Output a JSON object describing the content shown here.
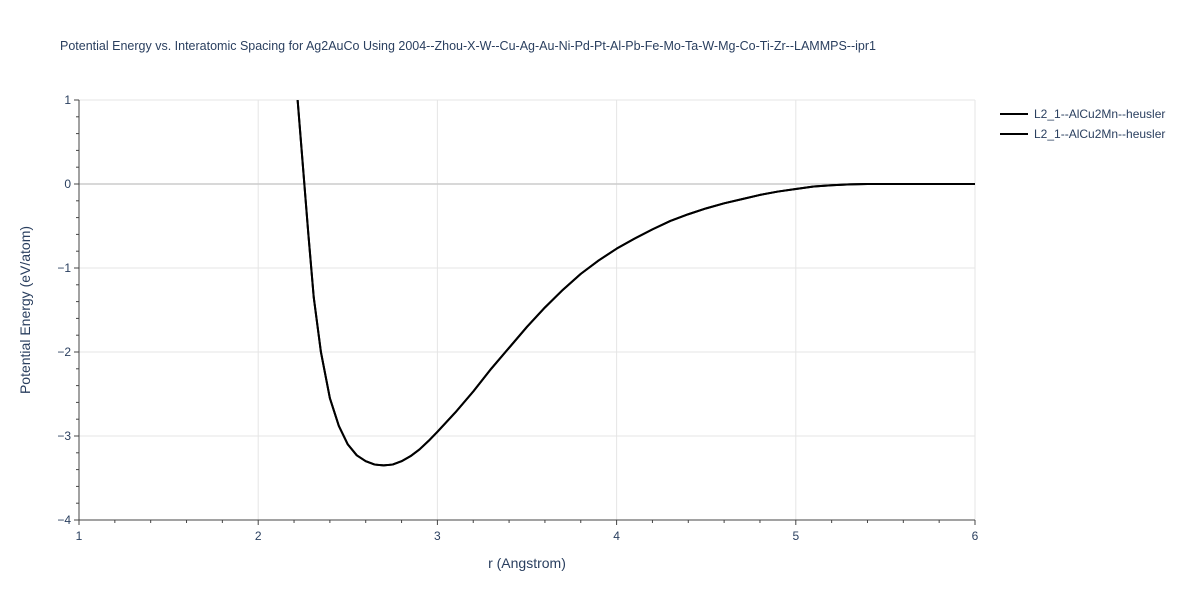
{
  "chart_data": {
    "type": "line",
    "title": "Potential Energy vs. Interatomic Spacing for Ag2AuCo Using 2004--Zhou-X-W--Cu-Ag-Au-Ni-Pd-Pt-Al-Pb-Fe-Mo-Ta-W-Mg-Co-Ti-Zr--LAMMPS--ipr1",
    "xlabel": "r (Angstrom)",
    "ylabel": "Potential Energy (eV/atom)",
    "xlim": [
      1,
      6
    ],
    "ylim": [
      -4,
      1
    ],
    "xticks": [
      1,
      2,
      3,
      4,
      5,
      6
    ],
    "yticks": [
      -4,
      -3,
      -2,
      -1,
      0,
      1
    ],
    "xtick_labels": [
      "1",
      "2",
      "3",
      "4",
      "5",
      "6"
    ],
    "ytick_labels": [
      "−4",
      "−3",
      "−2",
      "−1",
      "0",
      "1"
    ],
    "grid": true,
    "legend_position": "top-right",
    "series": [
      {
        "name": "L2_1--AlCu2Mn--heusler",
        "color": "#000000",
        "x": [
          2.22,
          2.25,
          2.28,
          2.31,
          2.35,
          2.4,
          2.45,
          2.5,
          2.55,
          2.6,
          2.65,
          2.7,
          2.75,
          2.8,
          2.85,
          2.9,
          2.95,
          3.0,
          3.1,
          3.2,
          3.3,
          3.4,
          3.5,
          3.6,
          3.7,
          3.8,
          3.9,
          4.0,
          4.1,
          4.2,
          4.3,
          4.4,
          4.5,
          4.6,
          4.7,
          4.8,
          4.9,
          5.0,
          5.1,
          5.2,
          5.3,
          5.4,
          5.5,
          5.6,
          5.7,
          5.8,
          5.9,
          6.0
        ],
        "y": [
          1.0,
          0.2,
          -0.6,
          -1.35,
          -2.0,
          -2.55,
          -2.88,
          -3.1,
          -3.23,
          -3.3,
          -3.34,
          -3.35,
          -3.34,
          -3.3,
          -3.24,
          -3.16,
          -3.06,
          -2.95,
          -2.72,
          -2.47,
          -2.2,
          -1.95,
          -1.7,
          -1.47,
          -1.26,
          -1.07,
          -0.91,
          -0.77,
          -0.65,
          -0.54,
          -0.44,
          -0.36,
          -0.29,
          -0.23,
          -0.18,
          -0.13,
          -0.09,
          -0.06,
          -0.03,
          -0.015,
          -0.005,
          0.0,
          0.0,
          0.0,
          0.0,
          0.0,
          0.0,
          0.0
        ]
      },
      {
        "name": "L2_1--AlCu2Mn--heusler",
        "color": "#000000",
        "x": [
          2.22,
          2.25,
          2.28,
          2.31,
          2.35,
          2.4,
          2.45,
          2.5,
          2.55,
          2.6,
          2.65,
          2.7,
          2.75,
          2.8,
          2.85,
          2.9,
          2.95,
          3.0,
          3.1,
          3.2,
          3.3,
          3.4,
          3.5,
          3.6,
          3.7,
          3.8,
          3.9,
          4.0,
          4.1,
          4.2,
          4.3,
          4.4,
          4.5,
          4.6,
          4.7,
          4.8,
          4.9,
          5.0,
          5.1,
          5.2,
          5.3,
          5.4,
          5.5,
          5.6,
          5.7,
          5.8,
          5.9,
          6.0
        ],
        "y": [
          1.0,
          0.2,
          -0.6,
          -1.35,
          -2.0,
          -2.55,
          -2.88,
          -3.1,
          -3.23,
          -3.3,
          -3.34,
          -3.35,
          -3.34,
          -3.3,
          -3.24,
          -3.16,
          -3.06,
          -2.95,
          -2.72,
          -2.47,
          -2.2,
          -1.95,
          -1.7,
          -1.47,
          -1.26,
          -1.07,
          -0.91,
          -0.77,
          -0.65,
          -0.54,
          -0.44,
          -0.36,
          -0.29,
          -0.23,
          -0.18,
          -0.13,
          -0.09,
          -0.06,
          -0.03,
          -0.015,
          -0.005,
          0.0,
          0.0,
          0.0,
          0.0,
          0.0,
          0.0,
          0.0
        ]
      }
    ]
  }
}
